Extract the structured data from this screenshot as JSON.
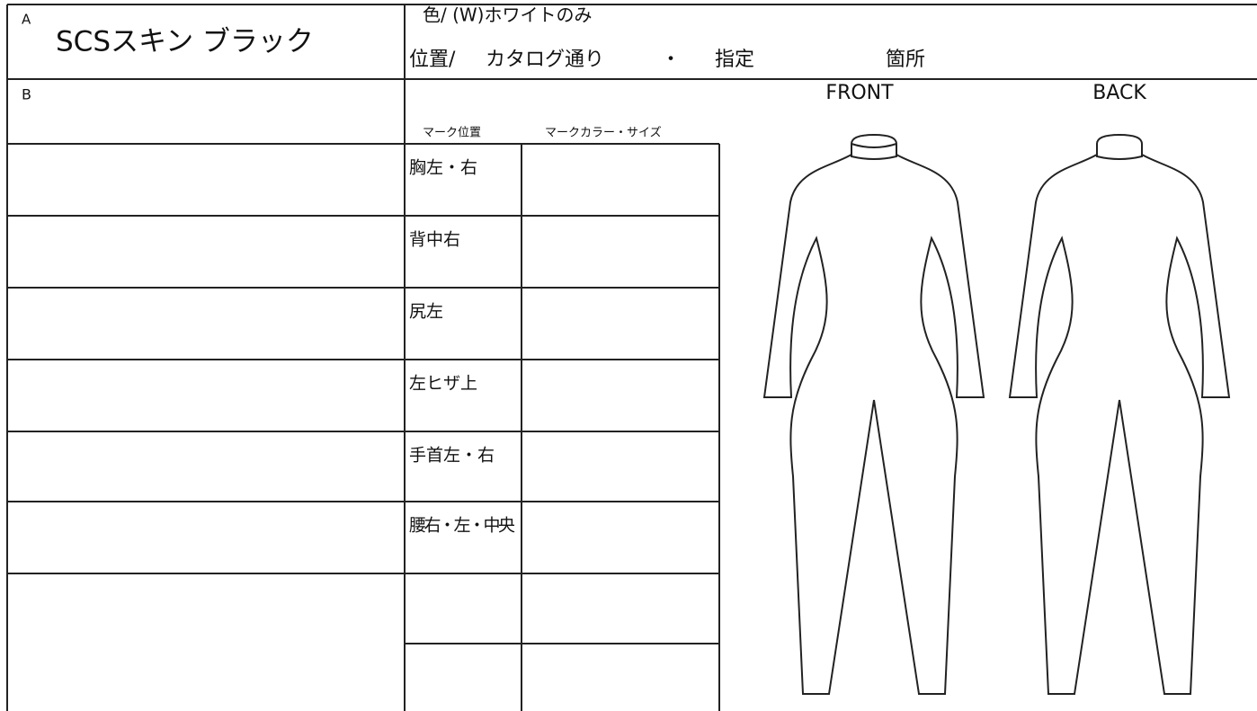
{
  "header": {
    "label": "A",
    "title": "SCSスキン ブラック",
    "color": "色/ (W)ホワイトのみ",
    "position": [
      "位置/",
      "カタログ通り",
      "・",
      "指定",
      "箇所"
    ]
  },
  "section_b": {
    "label": "B"
  },
  "figures": {
    "front": "FRONT",
    "back": "BACK"
  },
  "table": {
    "headers": [
      "マーク位置",
      "マークカラー・サイズ"
    ],
    "rows": [
      "胸左・右",
      "背中右",
      "尻左",
      "左ヒザ上",
      "手首左・右",
      "腰右・左・中央"
    ]
  }
}
